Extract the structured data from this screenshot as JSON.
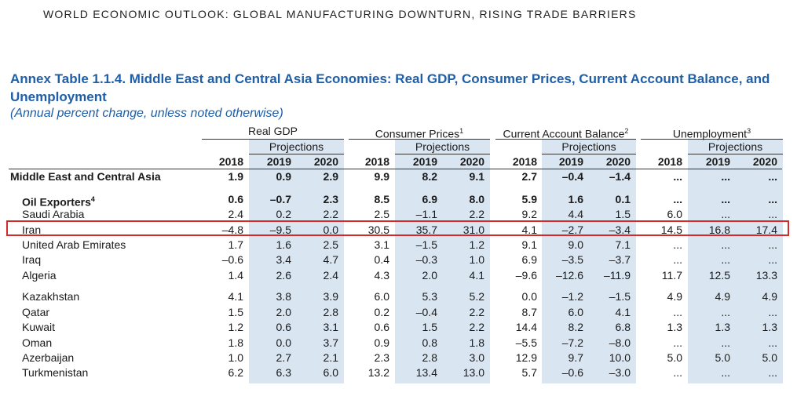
{
  "running_head": "WORLD ECONOMIC OUTLOOK: GLOBAL MANUFACTURING DOWNTURN, RISING TRADE BARRIERS",
  "title": "Annex Table 1.1.4. Middle East and Central Asia Economies: Real GDP, Consumer Prices, Current Account Balance, and Unemployment",
  "subtitle": "(Annual percent change, unless noted otherwise)",
  "colors": {
    "title_blue": "#1f5fa8",
    "shade": "#d9e6f2",
    "highlight_red": "#d42a2a"
  },
  "groups": [
    {
      "label": "Real GDP",
      "note": ""
    },
    {
      "label": "Consumer Prices",
      "note": "1"
    },
    {
      "label": "Current Account Balance",
      "note": "2"
    },
    {
      "label": "Unemployment",
      "note": "3"
    }
  ],
  "projections_label": "Projections",
  "years": [
    "2018",
    "2019",
    "2020"
  ],
  "rows": [
    {
      "label": "Middle East and Central Asia",
      "note": "",
      "style": "bold",
      "values": [
        "1.9",
        "0.9",
        "2.9",
        "9.9",
        "8.2",
        "9.1",
        "2.7",
        "–0.4",
        "–1.4",
        "...",
        "...",
        "..."
      ]
    },
    {
      "label": "Oil Exporters",
      "note": "4",
      "style": "sub-bold",
      "values": [
        "0.6",
        "–0.7",
        "2.3",
        "8.5",
        "6.9",
        "8.0",
        "5.9",
        "1.6",
        "0.1",
        "...",
        "...",
        "..."
      ]
    },
    {
      "label": "Saudi Arabia",
      "note": "",
      "style": "normal",
      "values": [
        "2.4",
        "0.2",
        "2.2",
        "2.5",
        "–1.1",
        "2.2",
        "9.2",
        "4.4",
        "1.5",
        "6.0",
        "...",
        "..."
      ]
    },
    {
      "label": "Iran",
      "note": "",
      "style": "normal",
      "values": [
        "–4.8",
        "–9.5",
        "0.0",
        "30.5",
        "35.7",
        "31.0",
        "4.1",
        "–2.7",
        "–3.4",
        "14.5",
        "16.8",
        "17.4"
      ]
    },
    {
      "label": "United Arab Emirates",
      "note": "",
      "style": "normal",
      "values": [
        "1.7",
        "1.6",
        "2.5",
        "3.1",
        "–1.5",
        "1.2",
        "9.1",
        "9.0",
        "7.1",
        "...",
        "...",
        "..."
      ]
    },
    {
      "label": "Iraq",
      "note": "",
      "style": "normal",
      "values": [
        "–0.6",
        "3.4",
        "4.7",
        "0.4",
        "–0.3",
        "1.0",
        "6.9",
        "–3.5",
        "–3.7",
        "...",
        "...",
        "..."
      ]
    },
    {
      "label": "Algeria",
      "note": "",
      "style": "normal",
      "values": [
        "1.4",
        "2.6",
        "2.4",
        "4.3",
        "2.0",
        "4.1",
        "–9.6",
        "–12.6",
        "–11.9",
        "11.7",
        "12.5",
        "13.3"
      ]
    },
    {
      "label": "Kazakhstan",
      "note": "",
      "style": "normal",
      "values": [
        "4.1",
        "3.8",
        "3.9",
        "6.0",
        "5.3",
        "5.2",
        "0.0",
        "–1.2",
        "–1.5",
        "4.9",
        "4.9",
        "4.9"
      ]
    },
    {
      "label": "Qatar",
      "note": "",
      "style": "normal",
      "values": [
        "1.5",
        "2.0",
        "2.8",
        "0.2",
        "–0.4",
        "2.2",
        "8.7",
        "6.0",
        "4.1",
        "...",
        "...",
        "..."
      ]
    },
    {
      "label": "Kuwait",
      "note": "",
      "style": "normal",
      "values": [
        "1.2",
        "0.6",
        "3.1",
        "0.6",
        "1.5",
        "2.2",
        "14.4",
        "8.2",
        "6.8",
        "1.3",
        "1.3",
        "1.3"
      ]
    },
    {
      "label": "Oman",
      "note": "",
      "style": "normal",
      "values": [
        "1.8",
        "0.0",
        "3.7",
        "0.9",
        "0.8",
        "1.8",
        "–5.5",
        "–7.2",
        "–8.0",
        "...",
        "...",
        "..."
      ]
    },
    {
      "label": "Azerbaijan",
      "note": "",
      "style": "normal",
      "values": [
        "1.0",
        "2.7",
        "2.1",
        "2.3",
        "2.8",
        "3.0",
        "12.9",
        "9.7",
        "10.0",
        "5.0",
        "5.0",
        "5.0"
      ]
    },
    {
      "label": "Turkmenistan",
      "note": "",
      "style": "normal",
      "values": [
        "6.2",
        "6.3",
        "6.0",
        "13.2",
        "13.4",
        "13.0",
        "5.7",
        "–0.6",
        "–3.0",
        "...",
        "...",
        "..."
      ]
    }
  ]
}
